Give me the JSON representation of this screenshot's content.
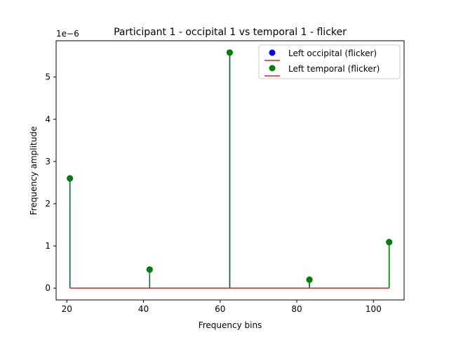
{
  "chart_data": {
    "type": "stem",
    "title": "Participant 1 - occipital 1 vs temporal 1 - flicker",
    "xlabel": "Frequency bins",
    "ylabel": "Frequency amplitude",
    "y_offset_label": "1e−6",
    "x_ticks": [
      20,
      40,
      60,
      80,
      100
    ],
    "y_ticks": [
      0,
      1,
      2,
      3,
      4,
      5
    ],
    "xlim": [
      17.2,
      108
    ],
    "ylim": [
      -0.28,
      5.86
    ],
    "legend_position": "upper right",
    "baseline_color": "#d62728",
    "series": [
      {
        "name": "Left occipital (flicker)",
        "color": "#0000ff",
        "x": [
          20.8,
          41.6,
          62.5,
          83.3,
          104.1
        ],
        "y": [
          2.6,
          0.44,
          5.58,
          0.2,
          1.09
        ]
      },
      {
        "name": "Left temporal (flicker)",
        "color": "#008000",
        "x": [
          20.8,
          41.6,
          62.5,
          83.3,
          104.1
        ],
        "y": [
          2.6,
          0.44,
          5.58,
          0.2,
          1.09
        ]
      }
    ]
  }
}
